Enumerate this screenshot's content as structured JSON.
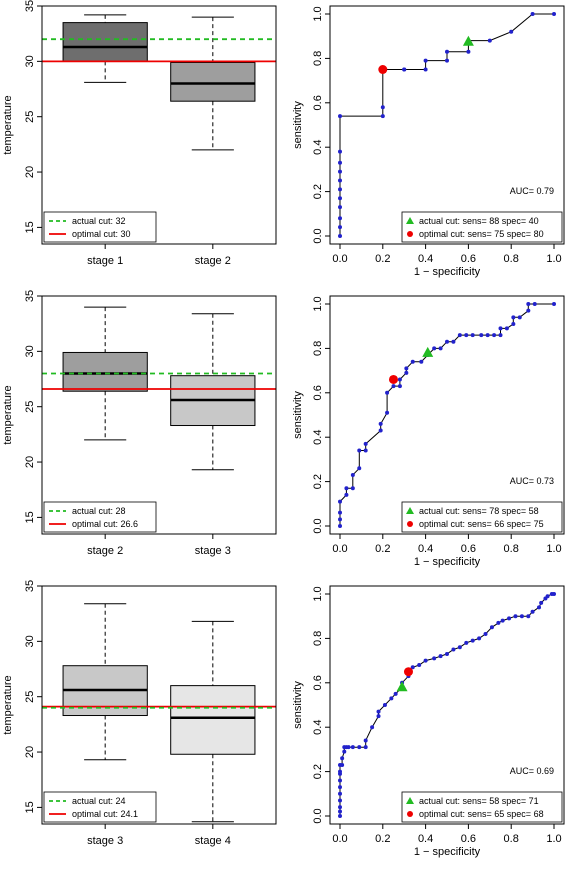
{
  "colors": {
    "actual_line": "#22bb22",
    "optimal_line": "#ee0000",
    "roc_point": "#2222cc",
    "roc_line": "#000000",
    "box_dark": "#6e6e6e",
    "box_mid": "#9e9e9e",
    "box_light": "#c8c8c8",
    "box_lightest": "#e6e6e6"
  },
  "chart_data": [
    {
      "type": "boxplot",
      "ylabel": "temperature",
      "ylim": [
        13.5,
        35
      ],
      "yticks": [
        "15",
        "20",
        "25",
        "30",
        "35"
      ],
      "categories": [
        "stage 1",
        "stage 2"
      ],
      "boxes": [
        {
          "min": 28.1,
          "q1": 30.0,
          "median": 31.3,
          "q3": 33.5,
          "max": 34.2,
          "color": "box_dark"
        },
        {
          "min": 22.0,
          "q1": 26.4,
          "median": 28.0,
          "q3": 29.9,
          "max": 34.0,
          "color": "box_mid"
        }
      ],
      "cutoffs": {
        "actual": 32,
        "optimal": 30
      },
      "legend": {
        "actual_label": "actual cut: 32",
        "optimal_label": "optimal cut: 30"
      }
    },
    {
      "type": "line",
      "xlabel": "1 − specificity",
      "ylabel": "sensitivity",
      "xlim": [
        0,
        1
      ],
      "ylim": [
        0,
        1
      ],
      "xticks": [
        "0.0",
        "0.2",
        "0.4",
        "0.6",
        "0.8",
        "1.0"
      ],
      "yticks": [
        "0.0",
        "0.2",
        "0.4",
        "0.6",
        "0.8",
        "1.0"
      ],
      "auc_label": "AUC= 0.79",
      "series": [
        {
          "x": [
            0,
            0,
            0,
            0,
            0,
            0,
            0,
            0,
            0,
            0,
            0,
            0.2,
            0.2,
            0.2,
            0.3,
            0.3,
            0.4,
            0.4,
            0.5,
            0.5,
            0.6,
            0.6,
            0.7,
            0.8,
            0.9,
            1.0
          ],
          "y": [
            0,
            0.04,
            0.08,
            0.13,
            0.17,
            0.21,
            0.25,
            0.29,
            0.33,
            0.38,
            0.54,
            0.54,
            0.58,
            0.75,
            0.75,
            0.75,
            0.75,
            0.79,
            0.79,
            0.83,
            0.83,
            0.88,
            0.88,
            0.92,
            1.0,
            1.0
          ]
        }
      ],
      "actual_point": {
        "x": 0.6,
        "y": 0.875
      },
      "optimal_point": {
        "x": 0.2,
        "y": 0.75
      },
      "legend": {
        "actual_label": "actual cut: sens= 88 spec= 40",
        "optimal_label": "optimal cut: sens= 75 spec= 80"
      }
    },
    {
      "type": "boxplot",
      "ylabel": "temperature",
      "ylim": [
        13.5,
        35
      ],
      "yticks": [
        "15",
        "20",
        "25",
        "30",
        "35"
      ],
      "categories": [
        "stage 2",
        "stage 3"
      ],
      "boxes": [
        {
          "min": 22.0,
          "q1": 26.4,
          "median": 28.0,
          "q3": 29.9,
          "max": 34.0,
          "color": "box_mid"
        },
        {
          "min": 19.3,
          "q1": 23.3,
          "median": 25.6,
          "q3": 27.8,
          "max": 33.4,
          "color": "box_light"
        }
      ],
      "cutoffs": {
        "actual": 28,
        "optimal": 26.6
      },
      "legend": {
        "actual_label": "actual cut: 28",
        "optimal_label": "optimal cut: 26.6"
      }
    },
    {
      "type": "line",
      "xlabel": "1 − specificity",
      "ylabel": "sensitivity",
      "xlim": [
        0,
        1
      ],
      "ylim": [
        0,
        1
      ],
      "xticks": [
        "0.0",
        "0.2",
        "0.4",
        "0.6",
        "0.8",
        "1.0"
      ],
      "yticks": [
        "0.0",
        "0.2",
        "0.4",
        "0.6",
        "0.8",
        "1.0"
      ],
      "auc_label": "AUC= 0.73",
      "series": [
        {
          "x": [
            0,
            0,
            0,
            0,
            0.03,
            0.03,
            0.06,
            0.06,
            0.09,
            0.09,
            0.12,
            0.12,
            0.19,
            0.19,
            0.22,
            0.22,
            0.25,
            0.28,
            0.28,
            0.31,
            0.31,
            0.34,
            0.38,
            0.41,
            0.44,
            0.47,
            0.5,
            0.53,
            0.56,
            0.59,
            0.62,
            0.66,
            0.69,
            0.72,
            0.75,
            0.75,
            0.78,
            0.81,
            0.81,
            0.84,
            0.88,
            0.88,
            0.91,
            1.0
          ],
          "y": [
            0,
            0.03,
            0.06,
            0.11,
            0.14,
            0.17,
            0.17,
            0.23,
            0.26,
            0.34,
            0.34,
            0.37,
            0.43,
            0.46,
            0.51,
            0.6,
            0.63,
            0.63,
            0.66,
            0.69,
            0.71,
            0.74,
            0.74,
            0.77,
            0.8,
            0.8,
            0.83,
            0.83,
            0.86,
            0.86,
            0.86,
            0.86,
            0.86,
            0.86,
            0.86,
            0.89,
            0.89,
            0.91,
            0.94,
            0.94,
            0.97,
            1.0,
            1.0,
            1.0
          ]
        }
      ],
      "actual_point": {
        "x": 0.41,
        "y": 0.78
      },
      "optimal_point": {
        "x": 0.25,
        "y": 0.66
      },
      "legend": {
        "actual_label": "actual cut: sens= 78 spec= 58",
        "optimal_label": "optimal cut: sens= 66 spec= 75"
      }
    },
    {
      "type": "boxplot",
      "ylabel": "temperature",
      "ylim": [
        13.5,
        35
      ],
      "yticks": [
        "15",
        "20",
        "25",
        "30",
        "35"
      ],
      "categories": [
        "stage 3",
        "stage 4"
      ],
      "boxes": [
        {
          "min": 19.3,
          "q1": 23.3,
          "median": 25.6,
          "q3": 27.8,
          "max": 33.4,
          "color": "box_light"
        },
        {
          "min": 13.7,
          "q1": 19.8,
          "median": 23.1,
          "q3": 26.0,
          "max": 31.8,
          "color": "box_lightest"
        }
      ],
      "cutoffs": {
        "actual": 24,
        "optimal": 24.1
      },
      "legend": {
        "actual_label": "actual cut: 24",
        "optimal_label": "optimal cut: 24.1"
      }
    },
    {
      "type": "line",
      "xlabel": "1 − specificity",
      "ylabel": "sensitivity",
      "xlim": [
        0,
        1
      ],
      "ylim": [
        0,
        1
      ],
      "xticks": [
        "0.0",
        "0.2",
        "0.4",
        "0.6",
        "0.8",
        "1.0"
      ],
      "yticks": [
        "0.0",
        "0.2",
        "0.4",
        "0.6",
        "0.8",
        "1.0"
      ],
      "auc_label": "AUC= 0.69",
      "series": [
        {
          "x": [
            0,
            0,
            0,
            0,
            0,
            0,
            0,
            0,
            0,
            0,
            0.01,
            0.01,
            0.02,
            0.02,
            0.03,
            0.04,
            0.06,
            0.09,
            0.12,
            0.12,
            0.15,
            0.18,
            0.18,
            0.21,
            0.24,
            0.26,
            0.29,
            0.29,
            0.32,
            0.32,
            0.34,
            0.37,
            0.4,
            0.44,
            0.47,
            0.5,
            0.53,
            0.56,
            0.59,
            0.62,
            0.65,
            0.68,
            0.71,
            0.74,
            0.76,
            0.79,
            0.82,
            0.85,
            0.88,
            0.9,
            0.93,
            0.94,
            0.96,
            0.97,
            0.99,
            1.0
          ],
          "y": [
            0,
            0.02,
            0.04,
            0.07,
            0.1,
            0.13,
            0.16,
            0.19,
            0.2,
            0.23,
            0.23,
            0.26,
            0.29,
            0.31,
            0.31,
            0.31,
            0.31,
            0.31,
            0.31,
            0.34,
            0.4,
            0.45,
            0.47,
            0.5,
            0.53,
            0.55,
            0.58,
            0.6,
            0.63,
            0.66,
            0.67,
            0.68,
            0.7,
            0.71,
            0.72,
            0.73,
            0.75,
            0.76,
            0.78,
            0.79,
            0.8,
            0.82,
            0.85,
            0.87,
            0.88,
            0.89,
            0.9,
            0.9,
            0.9,
            0.92,
            0.94,
            0.96,
            0.98,
            0.99,
            1.0,
            1.0
          ]
        }
      ],
      "actual_point": {
        "x": 0.29,
        "y": 0.58
      },
      "optimal_point": {
        "x": 0.32,
        "y": 0.65
      },
      "legend": {
        "actual_label": "actual cut: sens= 58 spec= 71",
        "optimal_label": "optimal cut: sens= 65 spec= 68"
      }
    }
  ]
}
